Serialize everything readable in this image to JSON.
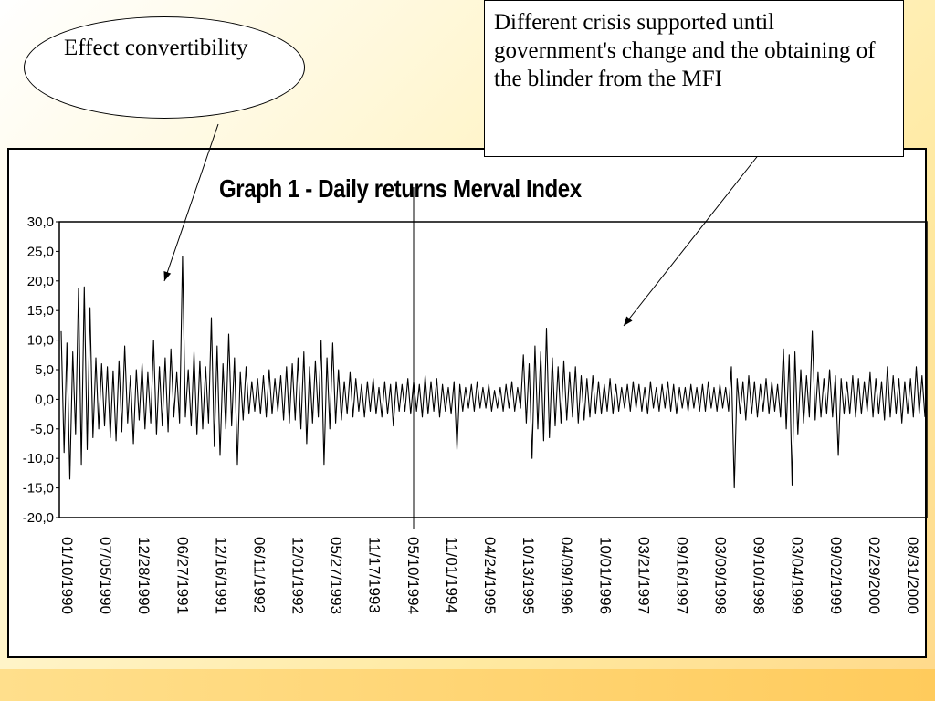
{
  "slide": {
    "background_colors": [
      "#ffffff",
      "#ffe9a0",
      "#ffcb5c"
    ]
  },
  "callouts": {
    "ellipse_text": "Effect convertibility",
    "box_text": "Different crisis supported until government's change and the obtaining of the blinder from the MFI"
  },
  "chart_data": {
    "type": "line",
    "title": "Graph 1 - Daily returns Merval Index",
    "xlabel": "",
    "ylabel": "",
    "ylim": [
      -20,
      30
    ],
    "y_ticks": [
      "30,0",
      "25,0",
      "20,0",
      "15,0",
      "10,0",
      "5,0",
      "0,0",
      "-5,0",
      "-10,0",
      "-15,0",
      "-20,0"
    ],
    "x_tick_labels": [
      "01/10/1990",
      "07/05/1990",
      "12/28/1990",
      "06/27/1991",
      "12/16/1991",
      "06/11/1992",
      "12/01/1992",
      "05/27/1993",
      "11/17/1993",
      "05/10/1994",
      "11/01/1994",
      "04/24/1995",
      "10/13/1995",
      "04/09/1996",
      "10/01/1996",
      "03/21/1997",
      "09/16/1997",
      "03/09/1998",
      "09/10/1998",
      "03/04/1999",
      "09/02/1999",
      "02/29/2000",
      "08/31/2000"
    ],
    "legend": "none",
    "grid": false,
    "line_color": "#000000",
    "series": [
      {
        "values": [
          11.5,
          -9.0,
          9.5,
          -13.5,
          8.0,
          -6.0,
          18.8,
          -11.0,
          19.0,
          -8.5,
          15.5,
          -6.5,
          7.0,
          -5.0,
          6.0,
          -4.5,
          5.5,
          -6.5,
          4.8,
          -7.0,
          6.5,
          -5.5,
          9.0,
          -4.0,
          4.0,
          -7.5,
          5.0,
          -3.5,
          6.0,
          -5.0,
          4.5,
          -4.0,
          10.0,
          -6.0,
          5.5,
          -4.5,
          7.0,
          -5.5,
          8.5,
          -3.0,
          4.5,
          -4.0,
          24.2,
          -3.0,
          5.0,
          -4.5,
          8.0,
          -6.0,
          6.5,
          -5.0,
          5.5,
          -4.0,
          13.8,
          -8.0,
          9.0,
          -9.5,
          6.0,
          -5.0,
          11.0,
          -4.5,
          7.0,
          -11.0,
          4.5,
          -3.5,
          5.5,
          -2.5,
          3.0,
          -2.0,
          3.5,
          -2.5,
          4.0,
          -3.0,
          5.0,
          -2.5,
          3.5,
          -2.0,
          4.0,
          -3.5,
          5.5,
          -4.0,
          6.0,
          -3.5,
          7.0,
          -5.0,
          8.0,
          -7.5,
          5.5,
          -4.0,
          6.5,
          -3.0,
          10.0,
          -11.0,
          7.0,
          -5.0,
          9.5,
          -4.0,
          5.0,
          -3.5,
          3.0,
          -2.5,
          4.5,
          -3.0,
          3.5,
          -2.0,
          2.5,
          -3.0,
          3.0,
          -2.0,
          3.5,
          -2.5,
          2.0,
          -3.0,
          3.0,
          -2.5,
          2.5,
          -4.5,
          3.0,
          -2.0,
          2.5,
          -2.0,
          3.5,
          -2.5,
          3.0,
          -2.0,
          2.5,
          -3.0,
          4.0,
          -2.5,
          3.0,
          -2.0,
          3.5,
          -3.0,
          2.5,
          -2.0,
          2.0,
          -2.5,
          3.0,
          -8.5,
          2.5,
          -2.0,
          2.0,
          -1.5,
          2.5,
          -2.0,
          3.0,
          -1.5,
          2.0,
          -1.5,
          2.5,
          -2.0,
          1.5,
          -1.5,
          2.0,
          -2.0,
          2.5,
          -1.5,
          3.0,
          -2.0,
          2.0,
          -1.5,
          7.5,
          -4.0,
          6.0,
          -10.0,
          9.0,
          -5.0,
          8.0,
          -7.0,
          12.0,
          -6.5,
          7.0,
          -4.5,
          5.5,
          -4.0,
          6.5,
          -3.5,
          4.5,
          -3.0,
          5.5,
          -4.0,
          4.0,
          -3.5,
          3.5,
          -3.0,
          4.0,
          -2.5,
          3.0,
          -2.5,
          2.5,
          -2.0,
          3.5,
          -2.5,
          2.5,
          -2.0,
          2.0,
          -1.5,
          2.5,
          -2.0,
          3.0,
          -1.5,
          2.5,
          -2.0,
          2.0,
          -2.5,
          3.0,
          -1.5,
          2.0,
          -2.0,
          2.5,
          -1.5,
          3.0,
          -2.0,
          2.5,
          -2.5,
          2.0,
          -1.5,
          2.0,
          -2.0,
          2.5,
          -1.5,
          2.0,
          -2.0,
          2.5,
          -2.0,
          3.0,
          -1.5,
          2.0,
          -2.0,
          2.5,
          -1.5,
          2.0,
          -2.0,
          5.5,
          -15.0,
          3.5,
          -2.5,
          3.0,
          -3.5,
          4.0,
          -2.5,
          3.0,
          -3.0,
          2.5,
          -2.0,
          3.5,
          -2.5,
          3.0,
          -2.0,
          2.5,
          -3.0,
          8.5,
          -5.0,
          7.5,
          -14.5,
          8.0,
          -6.0,
          5.0,
          -4.0,
          4.0,
          -3.0,
          11.5,
          -3.5,
          4.5,
          -3.0,
          3.5,
          -2.5,
          5.0,
          -3.0,
          4.0,
          -9.5,
          3.5,
          -2.5,
          3.0,
          -2.5,
          4.0,
          -3.0,
          3.5,
          -2.5,
          3.0,
          -2.0,
          4.5,
          -3.0,
          3.5,
          -2.5,
          3.0,
          -3.5,
          5.5,
          -3.0,
          4.0,
          -2.5,
          3.5,
          -4.0,
          3.0,
          -2.5,
          3.5,
          -3.0,
          5.5,
          -2.5,
          4.0,
          -3.0
        ]
      }
    ]
  }
}
